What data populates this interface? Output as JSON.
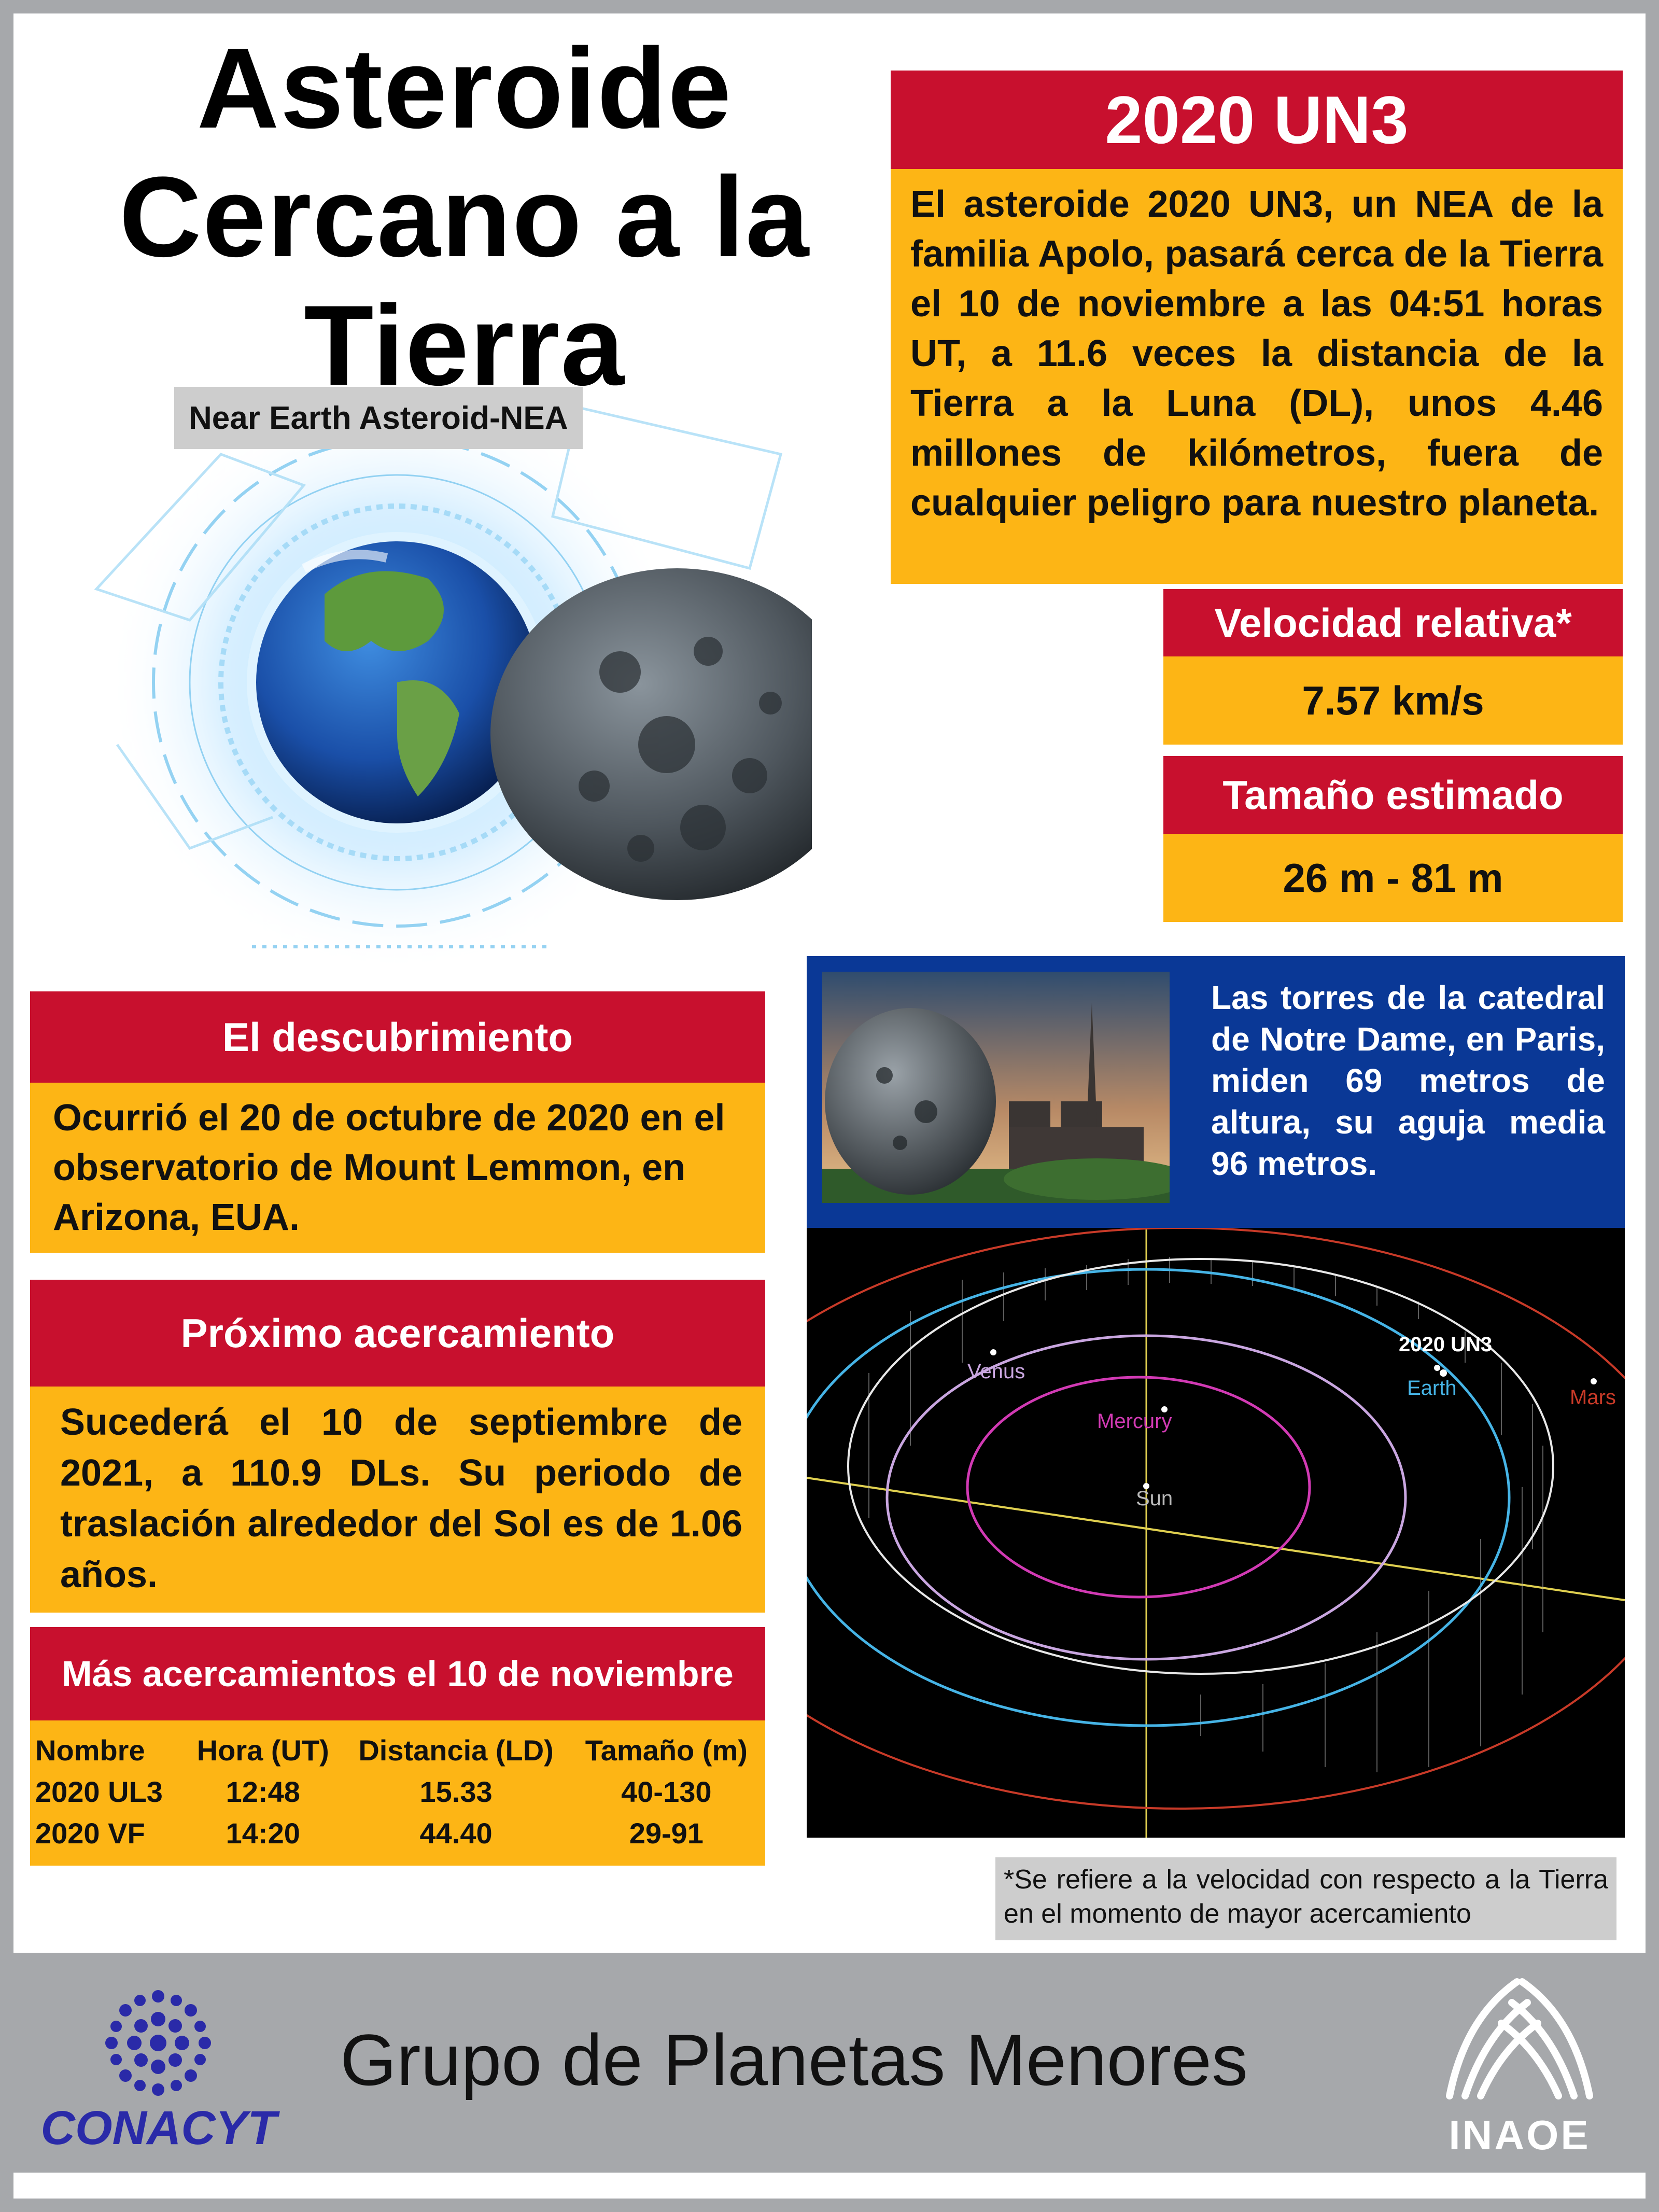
{
  "header": {
    "title_lines": [
      "Asteroide",
      "Cercano a la",
      "Tierra"
    ],
    "subtitle": "Near Earth Asteroid-NEA"
  },
  "asteroid": {
    "name": "2020 UN3",
    "description": "El  asteroide 2020 UN3, un NEA de la familia Apolo, pasará cerca de la Tierra el 10 de noviembre a las 04:51 horas UT, a 11.6 veces la distancia de la Tierra a la Luna (DL), unos 4.46 millones de kilómetros, fuera de cualquier peligro para nuestro planeta."
  },
  "velocity": {
    "label": "Velocidad relativa*",
    "value": "7.57 km/s"
  },
  "size": {
    "label": "Tamaño estimado",
    "value": "26 m - 81 m"
  },
  "discovery": {
    "label": "El descubrimiento",
    "text": "Ocurrió el 20 de octubre de 2020 en el observatorio de Mount Lemmon, en Arizona, EUA."
  },
  "next_approach": {
    "label": "Próximo acercamiento",
    "text": "Sucederá el 10 de septiembre de 2021, a 110.9 DLs. Su periodo de traslación alrededor del Sol es de 1.06 años."
  },
  "more_approaches": {
    "label": "Más acercamientos el 10 de noviembre",
    "columns": [
      "Nombre",
      "Hora (UT)",
      "Distancia (LD)",
      "Tamaño (m)"
    ],
    "rows": [
      [
        "2020 UL3",
        "12:48",
        "15.33",
        "40-130"
      ],
      [
        "2020 VF",
        "14:20",
        "44.40",
        "29-91"
      ]
    ]
  },
  "notre_dame": {
    "text": "Las torres de la catedral de Notre Dame, en Paris, miden 69 metros de altura, su aguja media 96 metros."
  },
  "orbit": {
    "labels": {
      "asteroid": "2020 UN3",
      "venus": "Venus",
      "earth": "Earth",
      "mars": "Mars",
      "mercury": "Mercury",
      "sun": "Sun"
    },
    "colors": {
      "venus": "#c9a6e0",
      "earth": "#46b4e6",
      "mars": "#c83a28",
      "mercury": "#d23ab4",
      "asteroid": "#e8e8e8",
      "axis": "#e0d050"
    }
  },
  "note": "*Se refiere a la velocidad con respecto a la Tierra en el momento de mayor acercamiento",
  "footer": {
    "title": "Grupo de Planetas Menores",
    "left_logo": "CONACYT",
    "right_logo": "INAOE"
  },
  "colors": {
    "red": "#c8102e",
    "yellow": "#fdb515",
    "blue": "#0a3896",
    "gray": "#a6a8ab"
  }
}
